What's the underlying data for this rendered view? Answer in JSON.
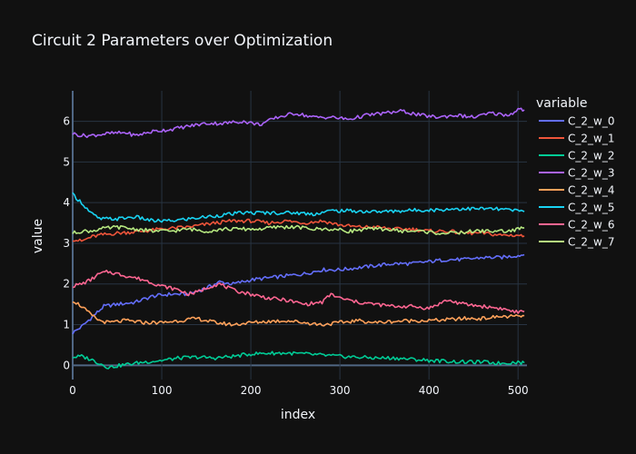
{
  "chart_data": {
    "type": "line",
    "title": "Circuit 2 Parameters over Optimization",
    "xlabel": "index",
    "ylabel": "value",
    "xlim": [
      0,
      510
    ],
    "ylim": [
      -0.35,
      6.75
    ],
    "x_ticks": [
      0,
      100,
      200,
      300,
      400,
      500
    ],
    "y_ticks": [
      0,
      1,
      2,
      3,
      4,
      5,
      6
    ],
    "grid": true,
    "legend": {
      "title": "variable",
      "position": "right"
    },
    "series": [
      {
        "name": "C_2_w_0",
        "color": "#636efa",
        "points": [
          [
            0,
            0.8
          ],
          [
            10,
            0.95
          ],
          [
            20,
            1.15
          ],
          [
            35,
            1.45
          ],
          [
            50,
            1.5
          ],
          [
            70,
            1.55
          ],
          [
            90,
            1.7
          ],
          [
            110,
            1.75
          ],
          [
            130,
            1.75
          ],
          [
            150,
            1.9
          ],
          [
            165,
            2.05
          ],
          [
            180,
            2.0
          ],
          [
            200,
            2.1
          ],
          [
            220,
            2.15
          ],
          [
            240,
            2.2
          ],
          [
            260,
            2.25
          ],
          [
            280,
            2.35
          ],
          [
            300,
            2.35
          ],
          [
            320,
            2.4
          ],
          [
            340,
            2.45
          ],
          [
            360,
            2.5
          ],
          [
            380,
            2.5
          ],
          [
            400,
            2.55
          ],
          [
            420,
            2.6
          ],
          [
            440,
            2.6
          ],
          [
            460,
            2.65
          ],
          [
            480,
            2.65
          ],
          [
            500,
            2.7
          ],
          [
            507,
            2.72
          ]
        ]
      },
      {
        "name": "C_2_w_1",
        "color": "#ef553b",
        "points": [
          [
            0,
            3.1
          ],
          [
            10,
            3.05
          ],
          [
            20,
            3.15
          ],
          [
            30,
            3.2
          ],
          [
            50,
            3.25
          ],
          [
            80,
            3.3
          ],
          [
            100,
            3.35
          ],
          [
            130,
            3.4
          ],
          [
            160,
            3.5
          ],
          [
            180,
            3.55
          ],
          [
            200,
            3.55
          ],
          [
            220,
            3.5
          ],
          [
            240,
            3.55
          ],
          [
            260,
            3.5
          ],
          [
            280,
            3.55
          ],
          [
            300,
            3.45
          ],
          [
            320,
            3.4
          ],
          [
            340,
            3.4
          ],
          [
            360,
            3.35
          ],
          [
            380,
            3.35
          ],
          [
            400,
            3.3
          ],
          [
            420,
            3.3
          ],
          [
            440,
            3.25
          ],
          [
            460,
            3.25
          ],
          [
            480,
            3.2
          ],
          [
            500,
            3.2
          ],
          [
            507,
            3.18
          ]
        ]
      },
      {
        "name": "C_2_w_2",
        "color": "#00cc96",
        "points": [
          [
            0,
            0.2
          ],
          [
            10,
            0.22
          ],
          [
            20,
            0.15
          ],
          [
            30,
            0.05
          ],
          [
            40,
            -0.05
          ],
          [
            60,
            0.02
          ],
          [
            80,
            0.08
          ],
          [
            100,
            0.12
          ],
          [
            120,
            0.18
          ],
          [
            140,
            0.2
          ],
          [
            160,
            0.18
          ],
          [
            180,
            0.22
          ],
          [
            200,
            0.28
          ],
          [
            220,
            0.3
          ],
          [
            240,
            0.3
          ],
          [
            260,
            0.28
          ],
          [
            280,
            0.25
          ],
          [
            300,
            0.22
          ],
          [
            320,
            0.2
          ],
          [
            340,
            0.18
          ],
          [
            360,
            0.18
          ],
          [
            380,
            0.15
          ],
          [
            400,
            0.12
          ],
          [
            420,
            0.1
          ],
          [
            440,
            0.08
          ],
          [
            460,
            0.08
          ],
          [
            480,
            0.05
          ],
          [
            500,
            0.08
          ],
          [
            507,
            0.06
          ]
        ]
      },
      {
        "name": "C_2_w_3",
        "color": "#ab63fa",
        "points": [
          [
            0,
            5.7
          ],
          [
            10,
            5.65
          ],
          [
            20,
            5.65
          ],
          [
            40,
            5.7
          ],
          [
            60,
            5.72
          ],
          [
            70,
            5.65
          ],
          [
            90,
            5.75
          ],
          [
            110,
            5.8
          ],
          [
            130,
            5.88
          ],
          [
            150,
            5.95
          ],
          [
            170,
            5.95
          ],
          [
            190,
            6.0
          ],
          [
            210,
            5.92
          ],
          [
            230,
            6.1
          ],
          [
            250,
            6.2
          ],
          [
            270,
            6.1
          ],
          [
            290,
            6.1
          ],
          [
            310,
            6.05
          ],
          [
            330,
            6.15
          ],
          [
            350,
            6.2
          ],
          [
            370,
            6.25
          ],
          [
            390,
            6.15
          ],
          [
            410,
            6.1
          ],
          [
            430,
            6.15
          ],
          [
            450,
            6.1
          ],
          [
            470,
            6.2
          ],
          [
            490,
            6.15
          ],
          [
            500,
            6.3
          ],
          [
            507,
            6.28
          ]
        ]
      },
      {
        "name": "C_2_w_4",
        "color": "#ffa15a",
        "points": [
          [
            0,
            1.6
          ],
          [
            10,
            1.45
          ],
          [
            20,
            1.25
          ],
          [
            30,
            1.1
          ],
          [
            40,
            1.05
          ],
          [
            60,
            1.1
          ],
          [
            80,
            1.05
          ],
          [
            100,
            1.05
          ],
          [
            120,
            1.1
          ],
          [
            140,
            1.15
          ],
          [
            160,
            1.05
          ],
          [
            180,
            1.0
          ],
          [
            200,
            1.05
          ],
          [
            220,
            1.08
          ],
          [
            240,
            1.1
          ],
          [
            260,
            1.05
          ],
          [
            280,
            1.0
          ],
          [
            300,
            1.05
          ],
          [
            320,
            1.1
          ],
          [
            340,
            1.05
          ],
          [
            360,
            1.08
          ],
          [
            380,
            1.1
          ],
          [
            400,
            1.1
          ],
          [
            420,
            1.12
          ],
          [
            440,
            1.15
          ],
          [
            460,
            1.15
          ],
          [
            480,
            1.2
          ],
          [
            500,
            1.2
          ],
          [
            507,
            1.22
          ]
        ]
      },
      {
        "name": "C_2_w_5",
        "color": "#19d3f3",
        "points": [
          [
            0,
            4.2
          ],
          [
            10,
            4.0
          ],
          [
            20,
            3.75
          ],
          [
            30,
            3.6
          ],
          [
            50,
            3.6
          ],
          [
            70,
            3.65
          ],
          [
            90,
            3.55
          ],
          [
            110,
            3.55
          ],
          [
            130,
            3.6
          ],
          [
            150,
            3.65
          ],
          [
            170,
            3.7
          ],
          [
            190,
            3.75
          ],
          [
            210,
            3.75
          ],
          [
            230,
            3.75
          ],
          [
            250,
            3.75
          ],
          [
            270,
            3.72
          ],
          [
            290,
            3.8
          ],
          [
            310,
            3.8
          ],
          [
            330,
            3.78
          ],
          [
            350,
            3.78
          ],
          [
            370,
            3.8
          ],
          [
            390,
            3.82
          ],
          [
            410,
            3.82
          ],
          [
            430,
            3.85
          ],
          [
            450,
            3.85
          ],
          [
            470,
            3.85
          ],
          [
            490,
            3.82
          ],
          [
            500,
            3.8
          ],
          [
            507,
            3.78
          ]
        ]
      },
      {
        "name": "C_2_w_6",
        "color": "#ff6692",
        "points": [
          [
            0,
            1.95
          ],
          [
            10,
            2.0
          ],
          [
            20,
            2.1
          ],
          [
            30,
            2.25
          ],
          [
            40,
            2.3
          ],
          [
            60,
            2.2
          ],
          [
            80,
            2.1
          ],
          [
            100,
            1.95
          ],
          [
            120,
            1.85
          ],
          [
            130,
            1.75
          ],
          [
            140,
            1.8
          ],
          [
            155,
            1.95
          ],
          [
            165,
            2.0
          ],
          [
            180,
            1.85
          ],
          [
            200,
            1.75
          ],
          [
            220,
            1.65
          ],
          [
            240,
            1.6
          ],
          [
            260,
            1.5
          ],
          [
            280,
            1.55
          ],
          [
            290,
            1.75
          ],
          [
            300,
            1.65
          ],
          [
            320,
            1.55
          ],
          [
            340,
            1.5
          ],
          [
            360,
            1.45
          ],
          [
            380,
            1.45
          ],
          [
            400,
            1.4
          ],
          [
            420,
            1.6
          ],
          [
            440,
            1.5
          ],
          [
            460,
            1.45
          ],
          [
            480,
            1.4
          ],
          [
            500,
            1.3
          ],
          [
            507,
            1.32
          ]
        ]
      },
      {
        "name": "C_2_w_7",
        "color": "#b6e880",
        "points": [
          [
            0,
            3.25
          ],
          [
            10,
            3.3
          ],
          [
            20,
            3.3
          ],
          [
            30,
            3.35
          ],
          [
            50,
            3.4
          ],
          [
            70,
            3.35
          ],
          [
            90,
            3.3
          ],
          [
            110,
            3.3
          ],
          [
            130,
            3.35
          ],
          [
            150,
            3.3
          ],
          [
            170,
            3.35
          ],
          [
            190,
            3.35
          ],
          [
            210,
            3.35
          ],
          [
            230,
            3.4
          ],
          [
            250,
            3.4
          ],
          [
            270,
            3.35
          ],
          [
            290,
            3.35
          ],
          [
            310,
            3.3
          ],
          [
            330,
            3.35
          ],
          [
            350,
            3.35
          ],
          [
            370,
            3.3
          ],
          [
            390,
            3.3
          ],
          [
            410,
            3.25
          ],
          [
            430,
            3.25
          ],
          [
            450,
            3.3
          ],
          [
            470,
            3.3
          ],
          [
            490,
            3.3
          ],
          [
            500,
            3.35
          ],
          [
            507,
            3.38
          ]
        ]
      }
    ]
  }
}
